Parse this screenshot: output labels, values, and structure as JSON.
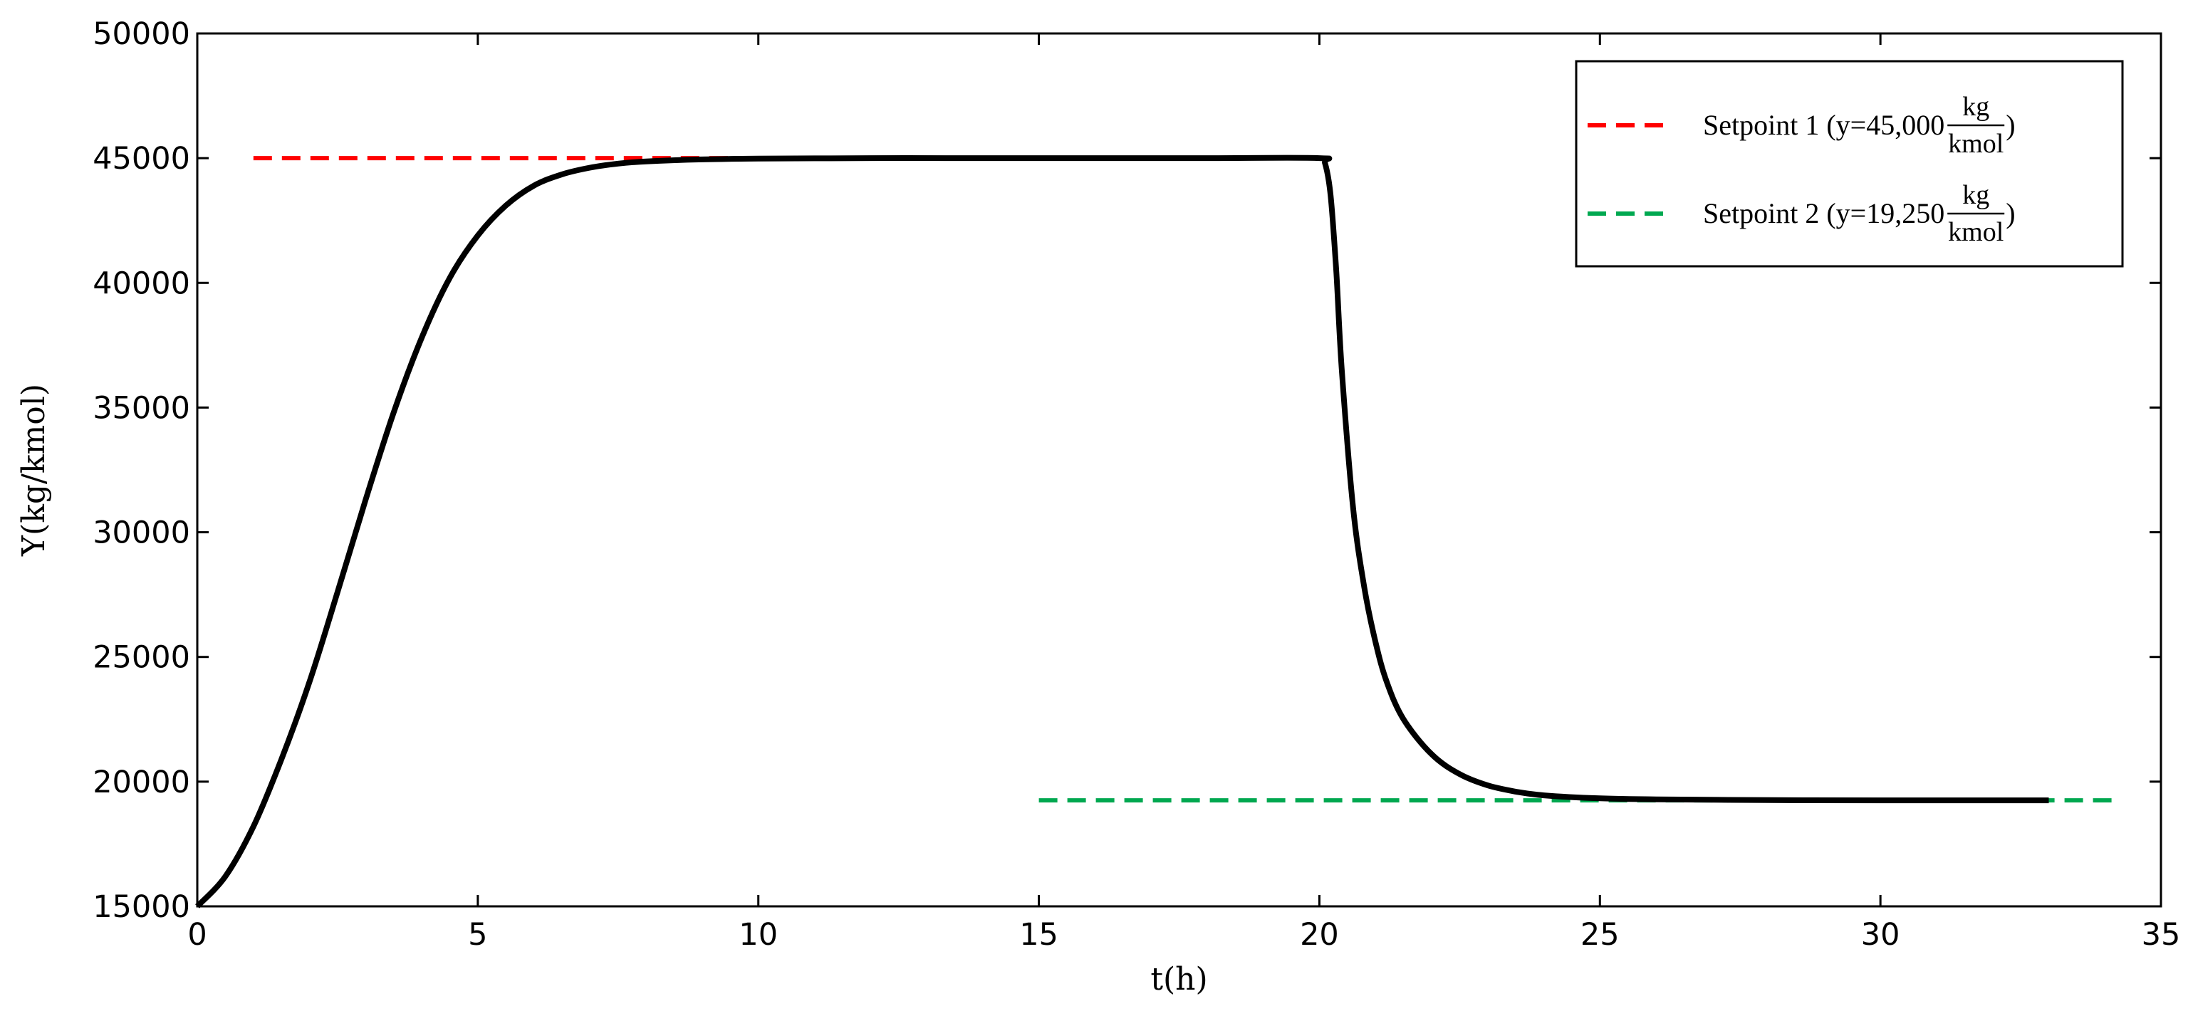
{
  "chart_data": {
    "type": "line",
    "title": "",
    "xlabel": "t(h)",
    "ylabel": "Y(kg/kmol)",
    "xlim": [
      0,
      35
    ],
    "ylim": [
      15000,
      50000
    ],
    "xticks": [
      0,
      5,
      10,
      15,
      20,
      25,
      30,
      35
    ],
    "yticks": [
      15000,
      20000,
      25000,
      30000,
      35000,
      40000,
      45000,
      50000
    ],
    "xtick_labels": [
      "0",
      "5",
      "10",
      "15",
      "20",
      "25",
      "30",
      "35"
    ],
    "ytick_labels": [
      "15000",
      "20000",
      "25000",
      "30000",
      "35000",
      "40000",
      "45000",
      "50000"
    ],
    "grid": false,
    "legend_position": "top-right",
    "colors": {
      "response": "#000000",
      "setpoint1": "#ff0000",
      "setpoint2": "#00a850"
    },
    "series": [
      {
        "key": "response",
        "style": "solid",
        "x": [
          0,
          0.5,
          1,
          1.5,
          2,
          2.5,
          3,
          3.5,
          4,
          4.5,
          5,
          5.5,
          6,
          6.5,
          7,
          7.5,
          8,
          9,
          10,
          12,
          14,
          16,
          18,
          20,
          20.1,
          20.2,
          20.3,
          20.4,
          20.6,
          20.8,
          21,
          21.2,
          21.5,
          22,
          22.5,
          23,
          23.5,
          24,
          25,
          26,
          28,
          30,
          33
        ],
        "y": [
          15000,
          16200,
          18200,
          20900,
          24000,
          27600,
          31300,
          34800,
          37800,
          40200,
          41900,
          43100,
          43900,
          44350,
          44620,
          44780,
          44870,
          44950,
          44980,
          45000,
          45000,
          45000,
          45000,
          45000,
          44800,
          43500,
          40500,
          36500,
          31000,
          27800,
          25600,
          24000,
          22500,
          21100,
          20300,
          19850,
          19600,
          19450,
          19330,
          19290,
          19260,
          19250,
          19250
        ]
      },
      {
        "key": "setpoint1",
        "name": "Setpoint 1 (y=45,000",
        "frac_num": "kg",
        "frac_den": "kmol",
        "close": ")",
        "style": "dashed",
        "x": [
          1,
          20.2
        ],
        "y": [
          45000,
          45000
        ]
      },
      {
        "key": "setpoint2",
        "name": "Setpoint 2 (y=19,250",
        "frac_num": "kg",
        "frac_den": "kmol",
        "close": ")",
        "style": "dashed",
        "x": [
          15,
          34.2
        ],
        "y": [
          19250,
          19250
        ]
      }
    ]
  }
}
